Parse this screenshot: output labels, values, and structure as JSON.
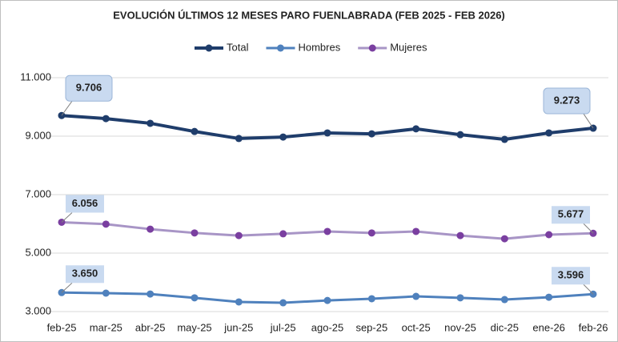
{
  "chart_data": {
    "type": "line",
    "title": "EVOLUCIÓN ÚLTIMOS 12 MESES PARO FUENLABRADA (FEB 2025 - FEB 2026)",
    "categories": [
      "feb-25",
      "mar-25",
      "abr-25",
      "may-25",
      "jun-25",
      "jul-25",
      "ago-25",
      "sep-25",
      "oct-25",
      "nov-25",
      "dic-25",
      "ene-26",
      "feb-26"
    ],
    "series": [
      {
        "name": "Total",
        "color": "#1f3d6b",
        "marker_color": "#1f3d6b",
        "values": [
          9706,
          9600,
          9440,
          9160,
          8920,
          8970,
          9110,
          9080,
          9250,
          9050,
          8890,
          9110,
          9273
        ],
        "value_labels": [
          "9.706",
          null,
          null,
          null,
          null,
          null,
          null,
          null,
          null,
          null,
          null,
          null,
          "9.273"
        ]
      },
      {
        "name": "Hombres",
        "color": "#4f81bd",
        "marker_color": "#4f81bd",
        "values": [
          3650,
          3630,
          3600,
          3470,
          3330,
          3300,
          3380,
          3440,
          3520,
          3470,
          3410,
          3490,
          3596
        ],
        "value_labels": [
          "3.650",
          null,
          null,
          null,
          null,
          null,
          null,
          null,
          null,
          null,
          null,
          null,
          "3.596"
        ]
      },
      {
        "name": "Mujeres",
        "color": "#a895c6",
        "marker_color": "#7a3fa0",
        "values": [
          6056,
          5990,
          5820,
          5690,
          5600,
          5660,
          5740,
          5690,
          5740,
          5600,
          5490,
          5630,
          5677
        ],
        "value_labels": [
          "6.056",
          null,
          null,
          null,
          null,
          null,
          null,
          null,
          null,
          null,
          null,
          null,
          "5.677"
        ]
      }
    ],
    "ylim": [
      3000,
      11000
    ],
    "yticks": [
      {
        "value": 3000,
        "label": "3.000"
      },
      {
        "value": 5000,
        "label": "5.000"
      },
      {
        "value": 7000,
        "label": "7.000"
      },
      {
        "value": 9000,
        "label": "9.000"
      },
      {
        "value": 11000,
        "label": "11.000"
      }
    ],
    "grid": true,
    "legend": "top"
  }
}
